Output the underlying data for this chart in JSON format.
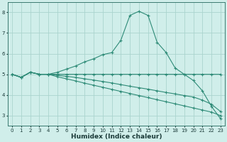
{
  "x": [
    0,
    1,
    2,
    3,
    4,
    5,
    6,
    7,
    8,
    9,
    10,
    11,
    12,
    13,
    14,
    15,
    16,
    17,
    18,
    19,
    20,
    21,
    22,
    23
  ],
  "line1": [
    5.0,
    4.85,
    5.1,
    5.0,
    5.0,
    5.1,
    5.25,
    5.4,
    5.6,
    5.75,
    5.95,
    6.05,
    6.65,
    7.85,
    8.05,
    7.85,
    6.55,
    6.05,
    5.3,
    5.0,
    4.7,
    4.2,
    3.45,
    2.85
  ],
  "line2": [
    5.0,
    4.85,
    5.1,
    5.0,
    5.0,
    5.0,
    5.0,
    5.0,
    5.0,
    5.0,
    5.0,
    5.0,
    5.0,
    5.0,
    5.0,
    5.0,
    5.0,
    5.0,
    5.0,
    5.0,
    5.0,
    5.0,
    5.0,
    5.0
  ],
  "line3": [
    5.0,
    4.85,
    5.1,
    5.0,
    5.0,
    4.95,
    4.9,
    4.85,
    4.78,
    4.72,
    4.65,
    4.58,
    4.5,
    4.42,
    4.35,
    4.28,
    4.2,
    4.12,
    4.05,
    3.97,
    3.9,
    3.75,
    3.55,
    3.2
  ],
  "line4": [
    5.0,
    4.85,
    5.1,
    5.0,
    5.0,
    4.88,
    4.78,
    4.68,
    4.57,
    4.47,
    4.37,
    4.27,
    4.17,
    4.07,
    3.97,
    3.87,
    3.77,
    3.67,
    3.57,
    3.47,
    3.37,
    3.27,
    3.17,
    3.0
  ],
  "line_color": "#2e8b77",
  "bg_color": "#d0eeea",
  "grid_color": "#aad4ce",
  "xlabel": "Humidex (Indice chaleur)",
  "ylim": [
    2.5,
    8.5
  ],
  "xlim": [
    -0.5,
    23.5
  ],
  "yticks": [
    3,
    4,
    5,
    6,
    7,
    8
  ],
  "xticks": [
    0,
    1,
    2,
    3,
    4,
    5,
    6,
    7,
    8,
    9,
    10,
    11,
    12,
    13,
    14,
    15,
    16,
    17,
    18,
    19,
    20,
    21,
    22,
    23
  ],
  "xtick_labels": [
    "0",
    "1",
    "2",
    "3",
    "4",
    "5",
    "6",
    "7",
    "8",
    "9",
    "10",
    "11",
    "12",
    "13",
    "14",
    "15",
    "16",
    "17",
    "18",
    "19",
    "20",
    "21",
    "22",
    "23"
  ]
}
